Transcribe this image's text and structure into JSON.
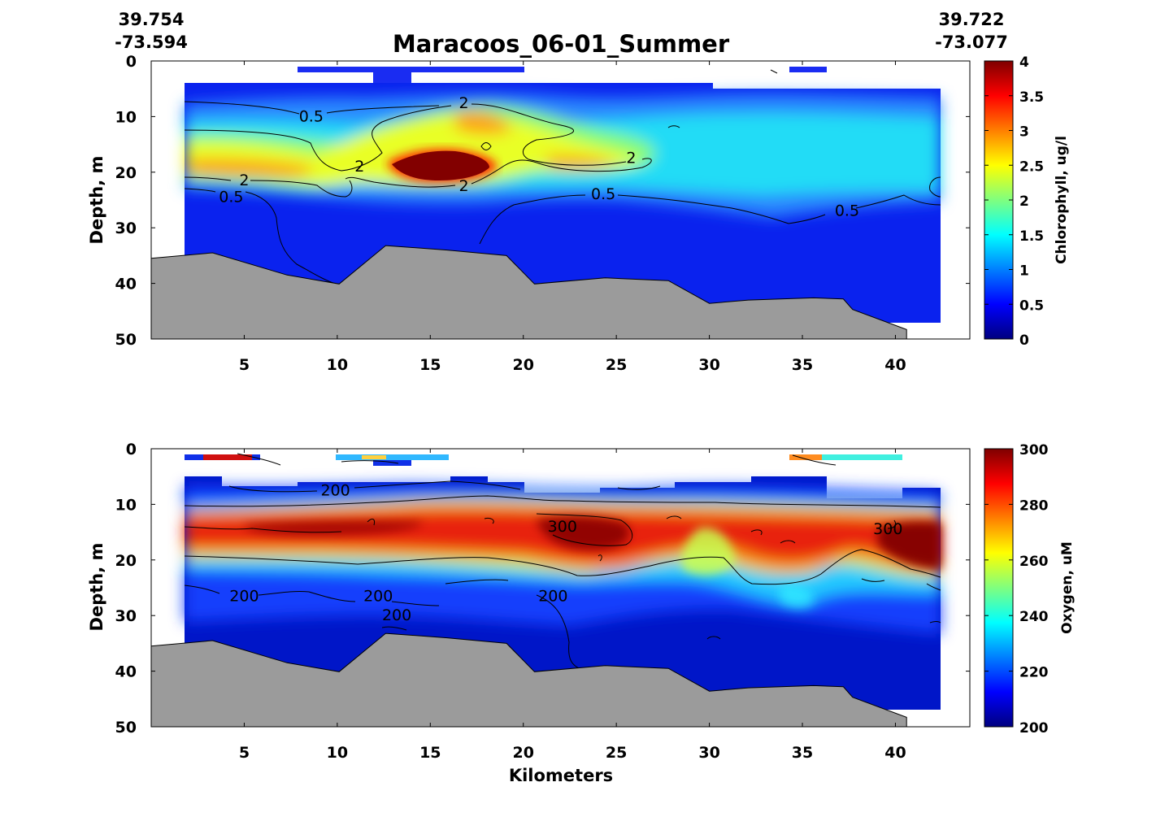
{
  "figure": {
    "title": "Maracoos_06-01_Summer",
    "start_lat": "39.754",
    "start_lon": "-73.594",
    "end_lat": "39.722",
    "end_lon": "-73.077",
    "xlabel": "Kilometers"
  },
  "chart_data": [
    {
      "type": "heatmap",
      "ylabel": "Depth, m",
      "colorbar_label": "Chlorophyll, ug/l",
      "xlim": [
        0,
        44
      ],
      "ylim": [
        50,
        0
      ],
      "x_ticks": [
        5,
        10,
        15,
        20,
        25,
        30,
        35,
        40
      ],
      "y_ticks": [
        0,
        10,
        20,
        30,
        40,
        50
      ],
      "colorbar_range": [
        0,
        4
      ],
      "colorbar_ticks": [
        "0",
        "0.5",
        "1",
        "1.5",
        "2",
        "2.5",
        "3",
        "3.5",
        "4"
      ],
      "colormap": "jet",
      "data_x_range": [
        1.8,
        42
      ],
      "contour_labels": [
        {
          "text": "0.5",
          "x": 8.6,
          "y": 10
        },
        {
          "text": "2",
          "x": 16.8,
          "y": 7.6
        },
        {
          "text": "2",
          "x": 5,
          "y": 21.5
        },
        {
          "text": "0.5",
          "x": 4.3,
          "y": 24.5
        },
        {
          "text": "2",
          "x": 11.2,
          "y": 19
        },
        {
          "text": "2",
          "x": 16.8,
          "y": 22.5
        },
        {
          "text": "2",
          "x": 25.8,
          "y": 17.5
        },
        {
          "text": "0.5",
          "x": 24.3,
          "y": 24
        },
        {
          "text": "0.5",
          "x": 37.4,
          "y": 27
        }
      ],
      "bathymetry_profile": [
        [
          0,
          35.5
        ],
        [
          3.3,
          34.5
        ],
        [
          7.3,
          38.5
        ],
        [
          10.1,
          40.1
        ],
        [
          12.6,
          33.2
        ],
        [
          15.9,
          34
        ],
        [
          19.1,
          35
        ],
        [
          20.6,
          40.1
        ],
        [
          24.4,
          39
        ],
        [
          27.8,
          39.5
        ],
        [
          30,
          43.6
        ],
        [
          32.1,
          43
        ],
        [
          35.6,
          42.6
        ],
        [
          37.2,
          42.8
        ],
        [
          37.7,
          44.7
        ],
        [
          40.6,
          48.3
        ],
        [
          40.6,
          50
        ],
        [
          0,
          50
        ]
      ],
      "colorbar_stops": [
        "#00007f",
        "#0000ff",
        "#007fff",
        "#00ffff",
        "#7fff7f",
        "#ffff00",
        "#ff7f00",
        "#ff0000",
        "#7f0000"
      ]
    },
    {
      "type": "heatmap",
      "ylabel": "Depth, m",
      "colorbar_label": "Oxygen, uM",
      "xlim": [
        0,
        44
      ],
      "ylim": [
        50,
        0
      ],
      "x_ticks": [
        5,
        10,
        15,
        20,
        25,
        30,
        35,
        40
      ],
      "y_ticks": [
        0,
        10,
        20,
        30,
        40,
        50
      ],
      "colorbar_range": [
        200,
        300
      ],
      "colorbar_ticks": [
        "200",
        "220",
        "240",
        "260",
        "280",
        "300"
      ],
      "colormap": "jet",
      "data_x_range": [
        1.8,
        42
      ],
      "contour_labels": [
        {
          "text": "200",
          "x": 9.9,
          "y": 7.5
        },
        {
          "text": "300",
          "x": 22.1,
          "y": 14
        },
        {
          "text": "300",
          "x": 39.6,
          "y": 14.5
        },
        {
          "text": "200",
          "x": 5,
          "y": 26.5
        },
        {
          "text": "200",
          "x": 12.2,
          "y": 26.5
        },
        {
          "text": "200",
          "x": 13.2,
          "y": 30
        },
        {
          "text": "200",
          "x": 21.6,
          "y": 26.5
        }
      ],
      "bathymetry_profile": [
        [
          0,
          35.5
        ],
        [
          3.3,
          34.5
        ],
        [
          7.3,
          38.5
        ],
        [
          10.1,
          40.1
        ],
        [
          12.6,
          33.2
        ],
        [
          15.9,
          34
        ],
        [
          19.1,
          35
        ],
        [
          20.6,
          40.1
        ],
        [
          24.4,
          39
        ],
        [
          27.8,
          39.5
        ],
        [
          30,
          43.6
        ],
        [
          32.1,
          43
        ],
        [
          35.6,
          42.6
        ],
        [
          37.2,
          42.8
        ],
        [
          37.7,
          44.7
        ],
        [
          40.6,
          48.3
        ],
        [
          40.6,
          50
        ],
        [
          0,
          50
        ]
      ],
      "colorbar_stops": [
        "#00007f",
        "#0000ff",
        "#007fff",
        "#00ffff",
        "#7fff7f",
        "#ffff00",
        "#ff7f00",
        "#ff0000",
        "#7f0000"
      ]
    }
  ],
  "colors": {
    "bathymetry": "#9b9b9b",
    "axis": "#000000",
    "background_field": "#0a1ee6"
  }
}
